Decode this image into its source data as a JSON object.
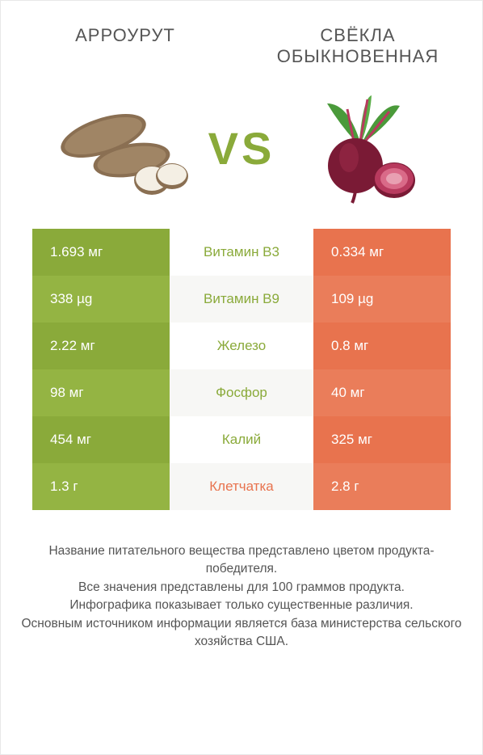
{
  "title_left": "Арроурут",
  "title_right": "Свёкла обыкновенная",
  "vs_text": "VS",
  "colors": {
    "left_a": "#8aaa3a",
    "left_b": "#94b443",
    "right_a": "#e8734e",
    "right_b": "#ea7d5a",
    "mid_a": "#ffffff",
    "mid_b": "#f7f7f5",
    "text_mid_left": "#8aaa3a",
    "text_mid_right": "#e8734e"
  },
  "rows": [
    {
      "left": "1.693 мг",
      "mid": "Витамин B3",
      "right": "0.334 мг",
      "winner": "left"
    },
    {
      "left": "338 µg",
      "mid": "Витамин B9",
      "right": "109 µg",
      "winner": "left"
    },
    {
      "left": "2.22 мг",
      "mid": "Железо",
      "right": "0.8 мг",
      "winner": "left"
    },
    {
      "left": "98 мг",
      "mid": "Фосфор",
      "right": "40 мг",
      "winner": "left"
    },
    {
      "left": "454 мг",
      "mid": "Калий",
      "right": "325 мг",
      "winner": "left"
    },
    {
      "left": "1.3 г",
      "mid": "Клетчатка",
      "right": "2.8 г",
      "winner": "right"
    }
  ],
  "footer_lines": [
    "Название питательного вещества представлено цветом продукта-победителя.",
    "Все значения представлены для 100 граммов продукта.",
    "Инфографика показывает только существенные различия.",
    "Основным источником информации является база министерства сельского хозяйства США."
  ]
}
